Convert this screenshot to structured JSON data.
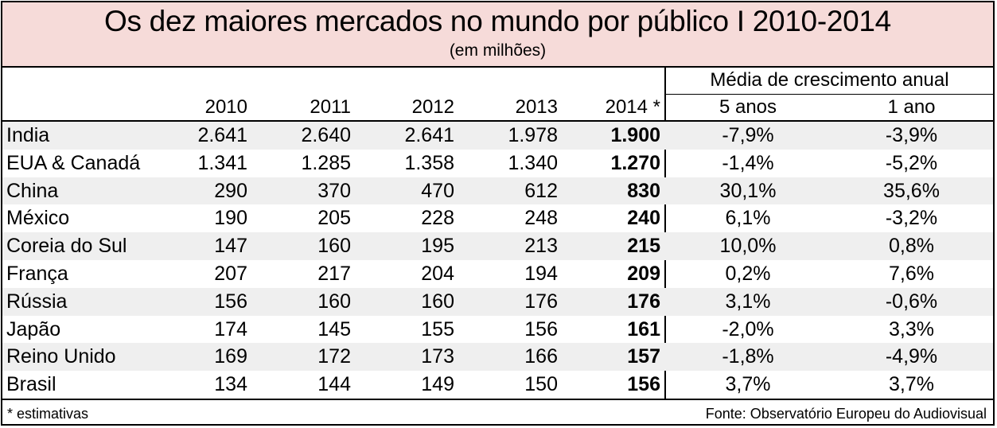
{
  "title": "Os dez maiores mercados no mundo por público I 2010-2014",
  "subtitle": "(em milhões)",
  "growth_header": "Média de crescimento anual",
  "columns": {
    "y2010": "2010",
    "y2011": "2011",
    "y2012": "2012",
    "y2013": "2013",
    "y2014": "2014 *",
    "g5": "5 anos",
    "g1": "1 ano"
  },
  "rows": [
    {
      "country": "India",
      "y2010": "2.641",
      "y2011": "2.640",
      "y2012": "2.641",
      "y2013": "1.978",
      "y2014": "1.900",
      "g5": "-7,9%",
      "g1": "-3,9%"
    },
    {
      "country": "EUA & Canadá",
      "y2010": "1.341",
      "y2011": "1.285",
      "y2012": "1.358",
      "y2013": "1.340",
      "y2014": "1.270",
      "g5": "-1,4%",
      "g1": "-5,2%"
    },
    {
      "country": "China",
      "y2010": "290",
      "y2011": "370",
      "y2012": "470",
      "y2013": "612",
      "y2014": "830",
      "g5": "30,1%",
      "g1": "35,6%"
    },
    {
      "country": "México",
      "y2010": "190",
      "y2011": "205",
      "y2012": "228",
      "y2013": "248",
      "y2014": "240",
      "g5": "6,1%",
      "g1": "-3,2%"
    },
    {
      "country": "Coreia do Sul",
      "y2010": "147",
      "y2011": "160",
      "y2012": "195",
      "y2013": "213",
      "y2014": "215",
      "g5": "10,0%",
      "g1": "0,8%"
    },
    {
      "country": "França",
      "y2010": "207",
      "y2011": "217",
      "y2012": "204",
      "y2013": "194",
      "y2014": "209",
      "g5": "0,2%",
      "g1": "7,6%"
    },
    {
      "country": "Rússia",
      "y2010": "156",
      "y2011": "160",
      "y2012": "160",
      "y2013": "176",
      "y2014": "176",
      "g5": "3,1%",
      "g1": "-0,6%"
    },
    {
      "country": "Japão",
      "y2010": "174",
      "y2011": "145",
      "y2012": "155",
      "y2013": "156",
      "y2014": "161",
      "g5": "-2,0%",
      "g1": "3,3%"
    },
    {
      "country": "Reino Unido",
      "y2010": "169",
      "y2011": "172",
      "y2012": "173",
      "y2013": "166",
      "y2014": "157",
      "g5": "-1,8%",
      "g1": "-4,9%"
    },
    {
      "country": "Brasil",
      "y2010": "134",
      "y2011": "144",
      "y2012": "149",
      "y2013": "150",
      "y2014": "156",
      "g5": "3,7%",
      "g1": "3,7%"
    }
  ],
  "footnote": "* estimativas",
  "source": "Fonte: Observatório Europeu do Audiovisual",
  "colors": {
    "header_bg": "#f6dbd9",
    "row_shade": "#efefef"
  }
}
